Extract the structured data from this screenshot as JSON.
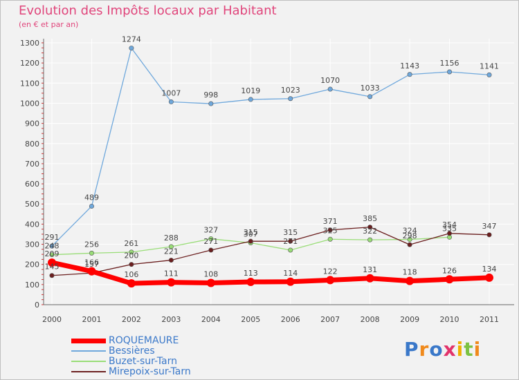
{
  "header": {
    "title": "Evolution des Impôts locaux par Habitant",
    "subtitle": "(en € et par an)"
  },
  "chart_data": {
    "type": "line",
    "x": [
      "2000",
      "2001",
      "2002",
      "2003",
      "2004",
      "2005",
      "2006",
      "2007",
      "2008",
      "2009",
      "2010",
      "2011"
    ],
    "ylim": [
      0,
      1300
    ],
    "yticks": [
      0,
      100,
      200,
      300,
      400,
      500,
      600,
      700,
      800,
      900,
      1000,
      1100,
      1200,
      1300
    ],
    "grid": true,
    "legend_position": "bottom-left",
    "series": [
      {
        "name": "ROQUEMAURE",
        "color": "#ff0000",
        "values": [
          209,
          166,
          106,
          111,
          108,
          113,
          114,
          122,
          131,
          118,
          126,
          134
        ]
      },
      {
        "name": "Bessières",
        "color": "#6fa8dc",
        "values": [
          291,
          489,
          1274,
          1007,
          998,
          1019,
          1023,
          1070,
          1033,
          1143,
          1156,
          1141
        ]
      },
      {
        "name": "Buzet-sur-Tarn",
        "color": "#99dd77",
        "values": [
          248,
          256,
          261,
          288,
          327,
          307,
          271,
          325,
          322,
          324,
          335,
          null
        ]
      },
      {
        "name": "Mirepoix-sur-Tarn",
        "color": "#6b1f1f",
        "values": [
          145,
          157,
          200,
          221,
          271,
          315,
          315,
          371,
          385,
          298,
          354,
          347
        ]
      }
    ],
    "data_labels": [
      {
        "series": 0,
        "labels": [
          "209",
          "166",
          "106",
          "111",
          "108",
          "113",
          "114",
          "122",
          "131",
          "118",
          "126",
          "134"
        ]
      },
      {
        "series": 1,
        "labels": [
          "291",
          "489",
          "1274",
          "1007",
          "998",
          "1019",
          "1023",
          "1070",
          "1033",
          "1143",
          "1156",
          "1141"
        ]
      },
      {
        "series": 2,
        "labels": [
          "248",
          "256",
          "261",
          "288",
          "327",
          "307",
          "271",
          "325",
          "322",
          "324",
          "335",
          ""
        ]
      },
      {
        "series": 3,
        "labels": [
          "145",
          "157",
          "200",
          "221",
          "271",
          "315",
          "315",
          "371",
          "385",
          "298",
          "354",
          "347"
        ]
      }
    ]
  },
  "branding": {
    "logo_text": "Proxiti",
    "logo_colors": [
      "#3a78c9",
      "#f08a1c",
      "#3a78c9",
      "#e2336b",
      "#f0b000",
      "#7cc242",
      "#f08a1c"
    ]
  }
}
